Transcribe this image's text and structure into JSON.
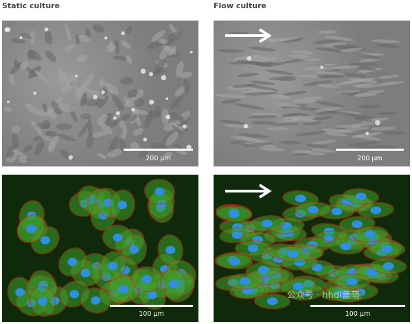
{
  "columns": [
    {
      "title": "Static culture",
      "phase_scale": "200 µm",
      "fluo_scale": "100 µm",
      "flow_arrow": false
    },
    {
      "title": "Flow culture",
      "phase_scale": "200 µm",
      "fluo_scale": "100 µm",
      "flow_arrow": true
    }
  ],
  "colors": {
    "nuclei": "#2f8fe0",
    "actin": "#3fa02a",
    "junctions": "#d02a14",
    "phase_bg": "#828282"
  },
  "watermark": "公众号 · hhdl蕾萌"
}
